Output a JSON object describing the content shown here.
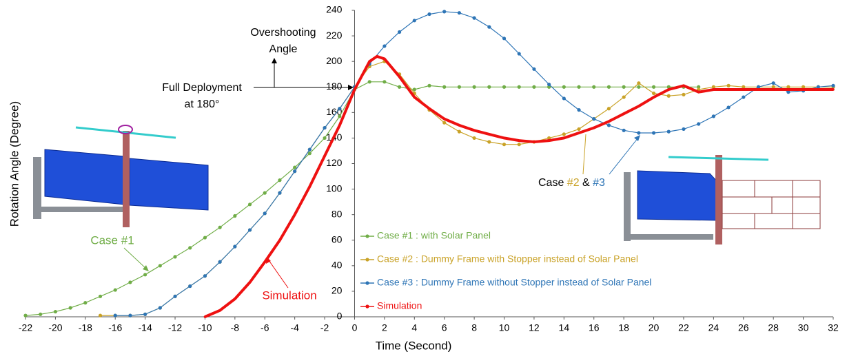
{
  "chart_data": {
    "type": "line",
    "x_label": "Time (Second)",
    "y_label": "Rotation Angle (Degree)",
    "xlim": [
      -22,
      32
    ],
    "ylim": [
      0,
      240
    ],
    "xticks": [
      -22,
      -20,
      -18,
      -16,
      -14,
      -12,
      -10,
      -8,
      -6,
      -4,
      -2,
      0,
      2,
      4,
      6,
      8,
      10,
      12,
      14,
      16,
      18,
      20,
      22,
      24,
      26,
      28,
      30,
      32
    ],
    "yticks": [
      0,
      20,
      40,
      60,
      80,
      100,
      120,
      140,
      160,
      180,
      200,
      220,
      240
    ],
    "grid": false,
    "legend": "lower-center",
    "series": [
      {
        "name": "Case #1 : with Solar Panel",
        "color": "#70ad47",
        "x": [
          -22,
          -21,
          -20,
          -19,
          -18,
          -17,
          -16,
          -15,
          -14,
          -13,
          -12,
          -11,
          -10,
          -9,
          -8,
          -7,
          -6,
          -5,
          -4,
          -3,
          -2,
          -1,
          0,
          1,
          2,
          3,
          4,
          5,
          6,
          7,
          8,
          9,
          10,
          11,
          12,
          13,
          14,
          15,
          16,
          17,
          18,
          19,
          20,
          21,
          22,
          23
        ],
        "values": [
          1,
          2,
          4,
          7,
          11,
          16,
          21,
          27,
          33,
          40,
          47,
          54,
          62,
          70,
          79,
          88,
          97,
          107,
          117,
          128,
          140,
          157,
          178,
          184,
          184,
          180,
          178,
          181,
          180,
          180,
          180,
          180,
          180,
          180,
          180,
          180,
          180,
          180,
          180,
          180,
          180,
          180,
          180,
          180,
          180,
          180
        ]
      },
      {
        "name": "Case #2 : Dummy Frame with Stopper instead of Solar Panel",
        "color": "#c9a227",
        "x": [
          -17,
          -16,
          -15,
          -14,
          -13,
          -12,
          -11,
          -10,
          -9,
          -8,
          -7,
          -6,
          -5,
          -4,
          -3,
          -2,
          -1,
          0,
          1,
          2,
          3,
          4,
          5,
          6,
          7,
          8,
          9,
          10,
          11,
          12,
          13,
          14,
          15,
          16,
          17,
          18,
          19,
          20,
          21,
          22,
          23,
          24,
          25,
          26,
          27,
          28,
          29,
          30,
          31,
          32
        ],
        "values": [
          1,
          1,
          1,
          2,
          7,
          16,
          24,
          32,
          43,
          55,
          68,
          81,
          97,
          114,
          131,
          148,
          163,
          180,
          196,
          200,
          190,
          175,
          162,
          152,
          145,
          140,
          137,
          135,
          135,
          137,
          140,
          143,
          147,
          155,
          163,
          172,
          183,
          175,
          173,
          174,
          178,
          180,
          181,
          180,
          180,
          180,
          180,
          180,
          180,
          180
        ]
      },
      {
        "name": "Case #3 : Dummy Frame without Stopper instead of Solar Panel",
        "color": "#2e75b6",
        "x": [
          -16,
          -15,
          -14,
          -13,
          -12,
          -11,
          -10,
          -9,
          -8,
          -7,
          -6,
          -5,
          -4,
          -3,
          -2,
          -1,
          0,
          1,
          2,
          3,
          4,
          5,
          6,
          7,
          8,
          9,
          10,
          11,
          12,
          13,
          14,
          15,
          16,
          17,
          18,
          19,
          20,
          21,
          22,
          23,
          24,
          25,
          26,
          27,
          28,
          29,
          30,
          31,
          32
        ],
        "values": [
          1,
          1,
          2,
          7,
          16,
          24,
          32,
          43,
          55,
          68,
          81,
          97,
          114,
          131,
          148,
          163,
          180,
          198,
          212,
          223,
          232,
          237,
          239,
          238,
          234,
          227,
          218,
          206,
          194,
          182,
          171,
          162,
          155,
          150,
          146,
          144,
          144,
          145,
          147,
          151,
          157,
          164,
          172,
          180,
          183,
          176,
          177,
          180,
          181
        ]
      },
      {
        "name": "Simulation",
        "color": "#ee1111",
        "x": [
          -10,
          -9,
          -8,
          -7,
          -6,
          -5,
          -4,
          -3,
          -2,
          -1,
          0,
          1,
          1.5,
          2,
          3,
          4,
          5,
          6,
          7,
          8,
          9,
          10,
          11,
          12,
          13,
          14,
          15,
          16,
          17,
          18,
          19,
          20,
          21,
          22,
          23,
          24,
          25,
          26,
          27,
          28,
          29,
          30,
          31,
          32
        ],
        "values": [
          0,
          5,
          14,
          27,
          43,
          60,
          80,
          102,
          126,
          150,
          178,
          200,
          204,
          202,
          188,
          172,
          163,
          155,
          150,
          146,
          143,
          140,
          138,
          137,
          138,
          140,
          144,
          148,
          153,
          159,
          165,
          172,
          178,
          181,
          176,
          178,
          178,
          178,
          178,
          178,
          178,
          178,
          178,
          178
        ]
      }
    ],
    "annotations": {
      "overshoot": [
        "Overshooting",
        "Angle"
      ],
      "full_deployment": [
        "Full Deployment",
        "at 180°"
      ],
      "case1": "Case #1",
      "simulation": "Simulation",
      "case23": [
        "Case ",
        "#2",
        " & ",
        "#3"
      ]
    }
  }
}
